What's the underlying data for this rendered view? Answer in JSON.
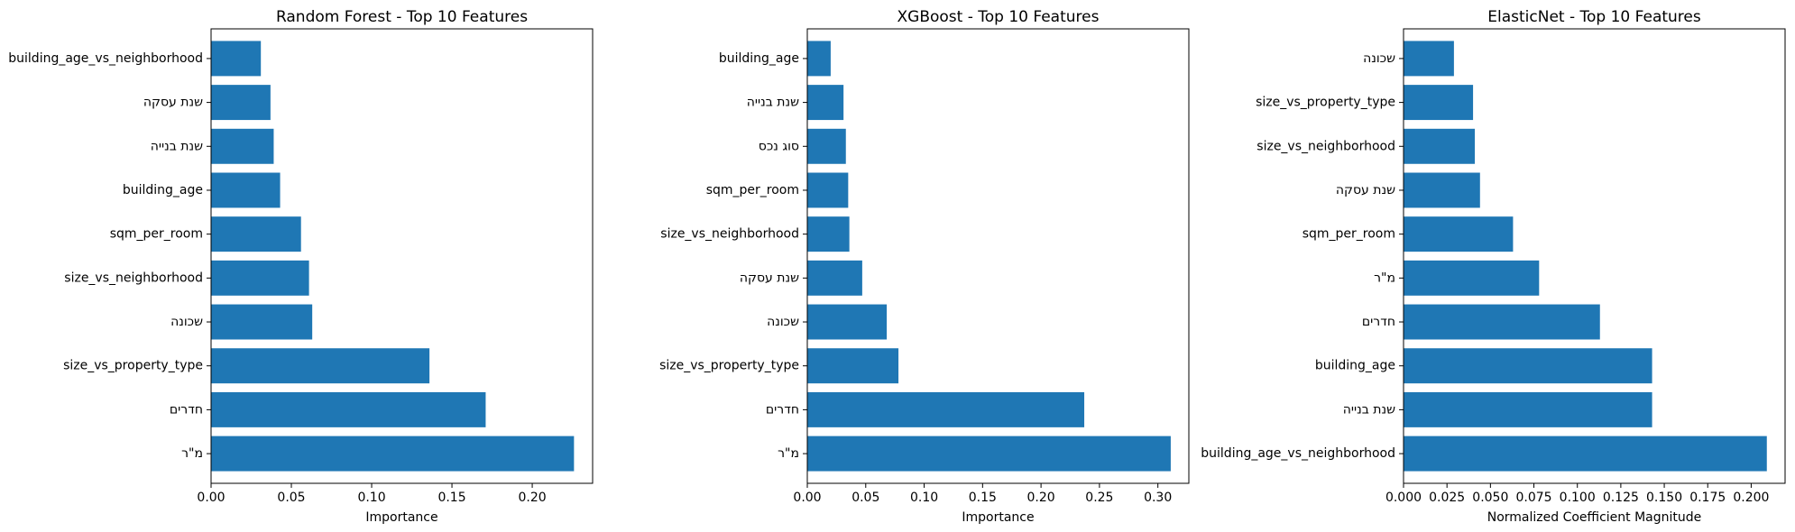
{
  "chart_data": [
    {
      "type": "bar",
      "orientation": "horizontal",
      "title": "Random Forest - Top 10 Features",
      "xlabel": "Importance",
      "ylabel": "",
      "xlim": [
        0,
        0.2376
      ],
      "xticks": [
        0,
        0.05,
        0.1,
        0.15,
        0.2
      ],
      "xtick_labels": [
        "0.00",
        "0.05",
        "0.10",
        "0.15",
        "0.20"
      ],
      "categories": [
        "מ\"ר",
        "חדרים",
        "size_vs_property_type",
        "שכונה",
        "size_vs_neighborhood",
        "sqm_per_room",
        "building_age",
        "שנת בנייה",
        "שנת עסקה",
        "building_age_vs_neighborhood"
      ],
      "values": [
        0.226,
        0.171,
        0.136,
        0.063,
        0.061,
        0.056,
        0.043,
        0.039,
        0.037,
        0.031
      ],
      "bar_color": "#1f77b4",
      "grid": false
    },
    {
      "type": "bar",
      "orientation": "horizontal",
      "title": "XGBoost - Top 10 Features",
      "xlabel": "Importance",
      "ylabel": "",
      "xlim": [
        0,
        0.3265
      ],
      "xticks": [
        0,
        0.05,
        0.1,
        0.15,
        0.2,
        0.25,
        0.3
      ],
      "xtick_labels": [
        "0.00",
        "0.05",
        "0.10",
        "0.15",
        "0.20",
        "0.25",
        "0.30"
      ],
      "categories": [
        "מ\"ר",
        "חדרים",
        "size_vs_property_type",
        "שכונה",
        "שנת עסקה",
        "size_vs_neighborhood",
        "sqm_per_room",
        "סוג נכס",
        "שנת בנייה",
        "building_age"
      ],
      "values": [
        0.311,
        0.237,
        0.078,
        0.068,
        0.047,
        0.036,
        0.035,
        0.033,
        0.031,
        0.02
      ],
      "bar_color": "#1f77b4",
      "grid": false
    },
    {
      "type": "bar",
      "orientation": "horizontal",
      "title": "ElasticNet - Top 10 Features",
      "xlabel": "Normalized Coefficient Magnitude",
      "ylabel": "",
      "xlim": [
        0,
        0.2195
      ],
      "xticks": [
        0,
        0.025,
        0.05,
        0.075,
        0.1,
        0.125,
        0.15,
        0.175,
        0.2
      ],
      "xtick_labels": [
        "0.000",
        "0.025",
        "0.050",
        "0.075",
        "0.100",
        "0.125",
        "0.150",
        "0.175",
        "0.200"
      ],
      "categories": [
        "building_age_vs_neighborhood",
        "שנת בנייה",
        "building_age",
        "חדרים",
        "מ\"ר",
        "sqm_per_room",
        "שנת עסקה",
        "size_vs_neighborhood",
        "size_vs_property_type",
        "שכונה"
      ],
      "values": [
        0.209,
        0.143,
        0.143,
        0.113,
        0.078,
        0.063,
        0.044,
        0.041,
        0.04,
        0.029
      ],
      "bar_color": "#1f77b4",
      "grid": false
    }
  ]
}
